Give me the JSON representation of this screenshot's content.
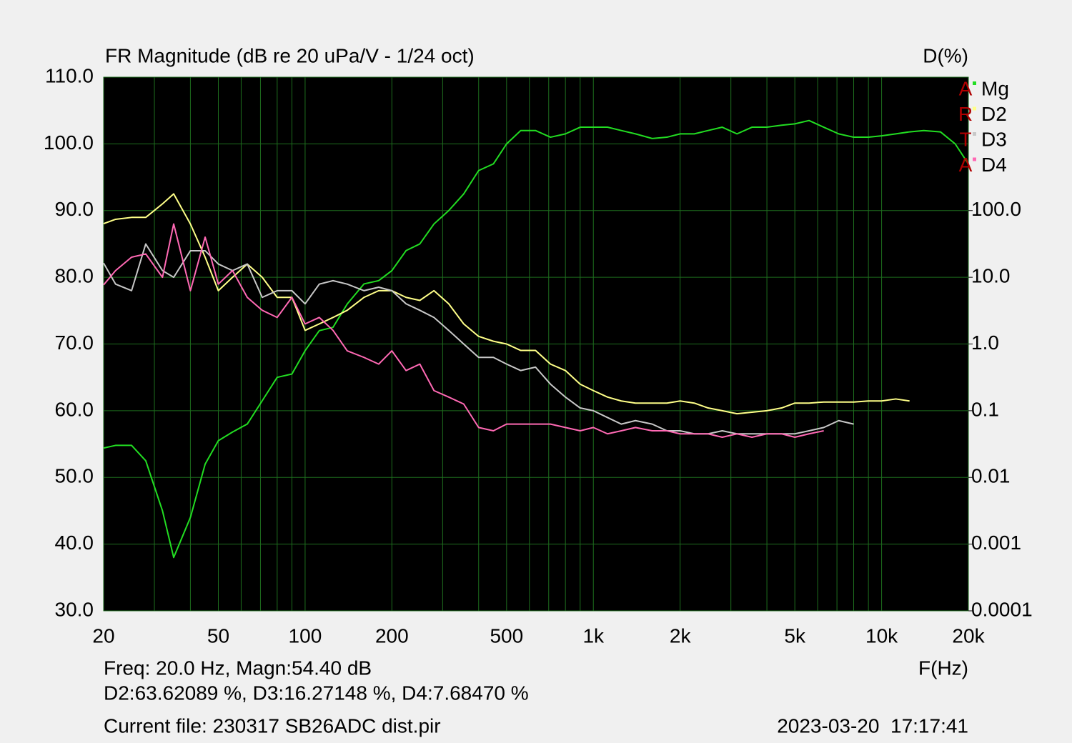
{
  "chart_data": {
    "type": "line",
    "title": "FR Magnitude (dB re 20 uPa/V - 1/24 oct)",
    "y2label": "D(%)",
    "xlabel": "F(Hz)",
    "xscale": "log",
    "y2scale": "log",
    "grid": true,
    "legend": "top-right",
    "xlim": [
      20,
      20000
    ],
    "xticks": [
      20,
      50,
      100,
      200,
      500,
      {
        "value": 1000,
        "label": "1k"
      },
      {
        "value": 2000,
        "label": "2k"
      },
      {
        "value": 5000,
        "label": "5k"
      },
      {
        "value": 10000,
        "label": "10k"
      },
      {
        "value": 20000,
        "label": "20k"
      }
    ],
    "xminor": [
      30,
      40,
      60,
      70,
      80,
      90,
      300,
      400,
      600,
      700,
      800,
      900,
      3000,
      4000,
      6000,
      7000,
      8000,
      9000
    ],
    "ylim": [
      30,
      110
    ],
    "yticks": [
      {
        "value": 30,
        "label": "30.0"
      },
      {
        "value": 40,
        "label": "40.0"
      },
      {
        "value": 50,
        "label": "50.0"
      },
      {
        "value": 60,
        "label": "60.0"
      },
      {
        "value": 70,
        "label": "70.0"
      },
      {
        "value": 80,
        "label": "80.0"
      },
      {
        "value": 90,
        "label": "90.0"
      },
      {
        "value": 100,
        "label": "100.0"
      },
      {
        "value": 110,
        "label": "110.0"
      }
    ],
    "y2lim": [
      0.0001,
      10000
    ],
    "y2ticks": [
      0.0001,
      0.001,
      0.01,
      0.1,
      {
        "value": 1,
        "label": "1.0"
      },
      {
        "value": 10,
        "label": "10.0"
      },
      {
        "value": 100,
        "label": "100.0"
      }
    ],
    "x": [
      20,
      22,
      25,
      28,
      32,
      35,
      40,
      45,
      50,
      56,
      63,
      71,
      80,
      90,
      100,
      112,
      125,
      140,
      160,
      180,
      200,
      224,
      250,
      280,
      315,
      355,
      400,
      450,
      500,
      560,
      630,
      710,
      800,
      900,
      1000,
      1120,
      1250,
      1400,
      1600,
      1800,
      2000,
      2240,
      2500,
      2800,
      3150,
      3550,
      4000,
      4500,
      5000,
      5600,
      6300,
      7100,
      8000,
      9000,
      10000,
      11200,
      12500,
      14000,
      16000,
      18000,
      20000
    ],
    "series": [
      {
        "name": "Mg",
        "color": "#22dd22",
        "axis": "y",
        "values": [
          54.4,
          54.8,
          54.8,
          52.5,
          45,
          38,
          44,
          52,
          55.5,
          56.8,
          58,
          61.5,
          65,
          65.5,
          69,
          72,
          72.5,
          76,
          79,
          79.5,
          81,
          84,
          85,
          88,
          90,
          92.5,
          96,
          97,
          100,
          102,
          102,
          101,
          101.5,
          102.5,
          102.5,
          102.5,
          102,
          101.5,
          100.8,
          101,
          101.5,
          101.5,
          102,
          102.5,
          101.5,
          102.5,
          102.5,
          102.8,
          103,
          103.5,
          102.5,
          101.5,
          101,
          101,
          101.2,
          101.5,
          101.8,
          102,
          101.8,
          100,
          97
        ]
      },
      {
        "name": "D2",
        "color": "#ffff88",
        "axis": "y2",
        "values": [
          63.6,
          74,
          79,
          79,
          126,
          178,
          63,
          20,
          6.3,
          10,
          15.8,
          10,
          5.0,
          5.0,
          1.6,
          2.0,
          2.5,
          3.2,
          5.0,
          6.3,
          6.3,
          5.0,
          4.5,
          6.3,
          4.0,
          2.0,
          1.3,
          1.1,
          1.0,
          0.8,
          0.8,
          0.5,
          0.4,
          0.25,
          0.2,
          0.16,
          0.14,
          0.13,
          0.13,
          0.13,
          0.14,
          0.13,
          0.11,
          0.1,
          0.09,
          0.095,
          0.1,
          0.11,
          0.13,
          0.13,
          0.135,
          0.135,
          0.135,
          0.14,
          0.14,
          0.15,
          0.14,
          null,
          null,
          null,
          null
        ]
      },
      {
        "name": "D3",
        "color": "#c8c8c8",
        "axis": "y2",
        "values": [
          16.3,
          7.9,
          6.3,
          31.6,
          12.6,
          10,
          25,
          25,
          15.8,
          12.6,
          15.8,
          5.0,
          6.3,
          6.3,
          4.0,
          7.9,
          8.9,
          7.9,
          6.3,
          7.1,
          6.3,
          4.0,
          3.2,
          2.5,
          1.6,
          1.0,
          0.63,
          0.63,
          0.5,
          0.4,
          0.45,
          0.25,
          0.16,
          0.11,
          0.1,
          0.079,
          0.063,
          0.071,
          0.063,
          0.05,
          0.05,
          0.045,
          0.045,
          0.05,
          0.045,
          0.045,
          0.045,
          0.045,
          0.045,
          0.05,
          0.056,
          0.071,
          0.063,
          null,
          null,
          null,
          null,
          null,
          null,
          null,
          null
        ]
      },
      {
        "name": "D4",
        "color": "#ff69b4",
        "axis": "y2",
        "values": [
          7.7,
          12.6,
          20,
          22.4,
          10,
          63,
          6.3,
          40,
          7.9,
          12.6,
          5.0,
          3.2,
          2.5,
          5.0,
          2.0,
          2.5,
          1.6,
          0.79,
          0.63,
          0.5,
          0.79,
          0.4,
          0.5,
          0.2,
          0.16,
          0.126,
          0.056,
          0.05,
          0.063,
          0.063,
          0.063,
          0.063,
          0.056,
          0.05,
          0.056,
          0.045,
          0.05,
          0.056,
          0.05,
          0.05,
          0.045,
          0.045,
          0.045,
          0.04,
          0.045,
          0.04,
          0.045,
          0.045,
          0.04,
          0.045,
          0.05,
          null,
          null,
          null,
          null,
          null,
          null,
          null,
          null,
          null,
          null
        ]
      }
    ]
  },
  "logo": [
    "A",
    "R",
    "T",
    "A"
  ],
  "status": {
    "cursor": "Freq: 20.0 Hz, Magn:54.40 dB",
    "distortion": "D2:63.62089 %, D3:16.27148 %, D4:7.68470 %",
    "file": "Current file: 230317 SB26ADC dist.pir",
    "timestamp": "2023-03-20  17:17:41"
  }
}
